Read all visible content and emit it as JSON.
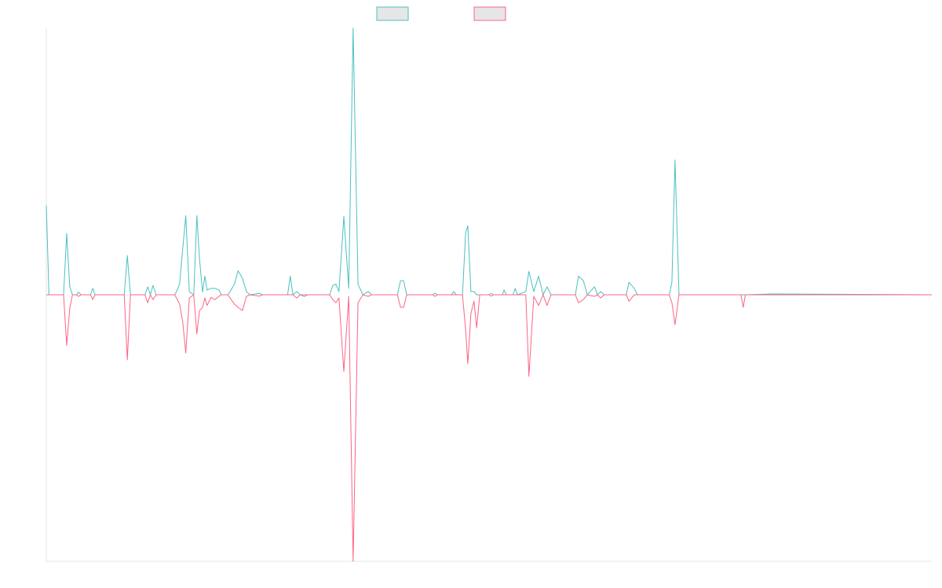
{
  "chart_data": {
    "type": "line",
    "x": [
      0,
      0.6,
      3.9,
      4.6,
      5.3,
      5.9,
      6.8,
      7.3,
      7.8,
      10,
      10.5,
      11,
      17.6,
      18.3,
      19,
      22.3,
      22.9,
      23.5,
      24.1,
      24.8,
      29,
      29.4,
      30.1,
      30.8,
      31.5,
      32.3,
      33.3,
      34,
      34.6,
      35.3,
      35.8,
      36.3,
      37.2,
      38.1,
      39,
      39.5,
      41,
      41.5,
      42.5,
      43.3,
      44.3,
      45.2,
      46,
      48.2,
      48.8,
      54.5,
      55.1,
      55.7,
      56.6,
      57.3,
      58.3,
      59,
      64,
      64.7,
      65.4,
      66.1,
      67.2,
      68.3,
      69.3,
      70.4,
      71.5,
      72.7,
      73.5,
      79.3,
      80,
      80.7,
      81.4,
      87.3,
      87.8,
      88.3,
      91.5,
      92,
      92.6,
      94,
      94.7,
      95.2,
      95.9,
      96.6,
      97.2,
      97.9,
      100,
      100.5,
      101,
      103,
      103.4,
      103.9,
      105.4,
      105.9,
      106.4,
      108.3,
      109,
      110.1,
      111.2,
      112.2,
      113.1,
      114,
      119.5,
      120.2,
      121.3,
      122.2,
      123.8,
      124.5,
      125.2,
      126,
      131,
      131.6,
      132.8,
      133.5,
      140.7,
      141.3,
      142,
      142.9,
      156.9,
      157.4,
      157.9,
      163.7,
      200
    ],
    "series": [
      {
        "color": "#4bc0c0",
        "values": [
          33.5,
          0,
          0,
          23,
          3,
          0,
          0,
          1,
          0,
          0,
          2.4,
          0,
          0,
          14.7,
          0,
          0,
          3,
          0,
          3.5,
          0,
          0,
          1.2,
          4,
          17,
          29.7,
          1.2,
          0,
          29.7,
          13.5,
          1,
          7,
          1.8,
          2.4,
          2.4,
          1.8,
          0,
          0,
          1.2,
          4,
          9,
          6.2,
          1.2,
          0,
          0.5,
          0,
          0,
          7,
          0,
          1.2,
          0,
          0,
          0,
          0,
          3.5,
          4,
          1.2,
          29.4,
          2.4,
          100,
          4,
          0,
          1.2,
          0,
          0,
          5.3,
          5.3,
          0,
          0,
          0.6,
          0,
          0,
          1.2,
          0,
          0,
          23,
          25.9,
          1.2,
          1.2,
          0,
          0,
          0,
          0.5,
          0,
          0,
          1.8,
          0,
          0,
          2.4,
          0,
          1.2,
          8.8,
          1.2,
          7,
          0,
          3,
          0,
          0,
          7,
          5.3,
          0,
          3,
          0,
          1.2,
          0,
          0,
          4.7,
          2.4,
          0,
          0,
          4.7,
          50.6,
          0,
          0,
          0,
          0,
          0.3,
          0
        ]
      },
      {
        "color": "#ff6384",
        "values": [
          0,
          0,
          0,
          -19,
          -5,
          0,
          0,
          -0.6,
          0,
          0,
          -1.8,
          0,
          0,
          -24.4,
          0,
          0,
          -3,
          0,
          -1.8,
          0,
          0,
          -1.2,
          -3.5,
          -10,
          -21.8,
          -1.2,
          0,
          -14.7,
          -5.9,
          -4.7,
          -1.2,
          -4,
          -1,
          -1.8,
          -0.6,
          0,
          0,
          -1.2,
          -3.5,
          -4.7,
          -5.9,
          -0.6,
          0,
          -0.5,
          0,
          0,
          0,
          0,
          -1.2,
          0,
          -0.6,
          0,
          0,
          -1.8,
          -3,
          -1.2,
          -28.8,
          -0.6,
          -100,
          -3,
          0,
          -0.6,
          0,
          0,
          -4.7,
          -4.7,
          0,
          0,
          -0.6,
          0,
          0,
          0,
          0,
          0,
          -13,
          -25.9,
          -7,
          -2.4,
          -12.4,
          0,
          0,
          -0.5,
          0,
          0,
          0,
          0,
          0,
          0,
          0,
          0,
          -30.6,
          -0.6,
          -4,
          0,
          -4,
          0,
          0,
          -3,
          -1.8,
          0,
          -0.6,
          0,
          -1.2,
          0,
          0,
          -2.4,
          0,
          0,
          0,
          -3,
          -11.2,
          0,
          0,
          -4.7,
          0,
          0,
          0
        ]
      }
    ],
    "xlim": [
      0,
      200
    ],
    "ylim": [
      -100,
      100
    ]
  }
}
